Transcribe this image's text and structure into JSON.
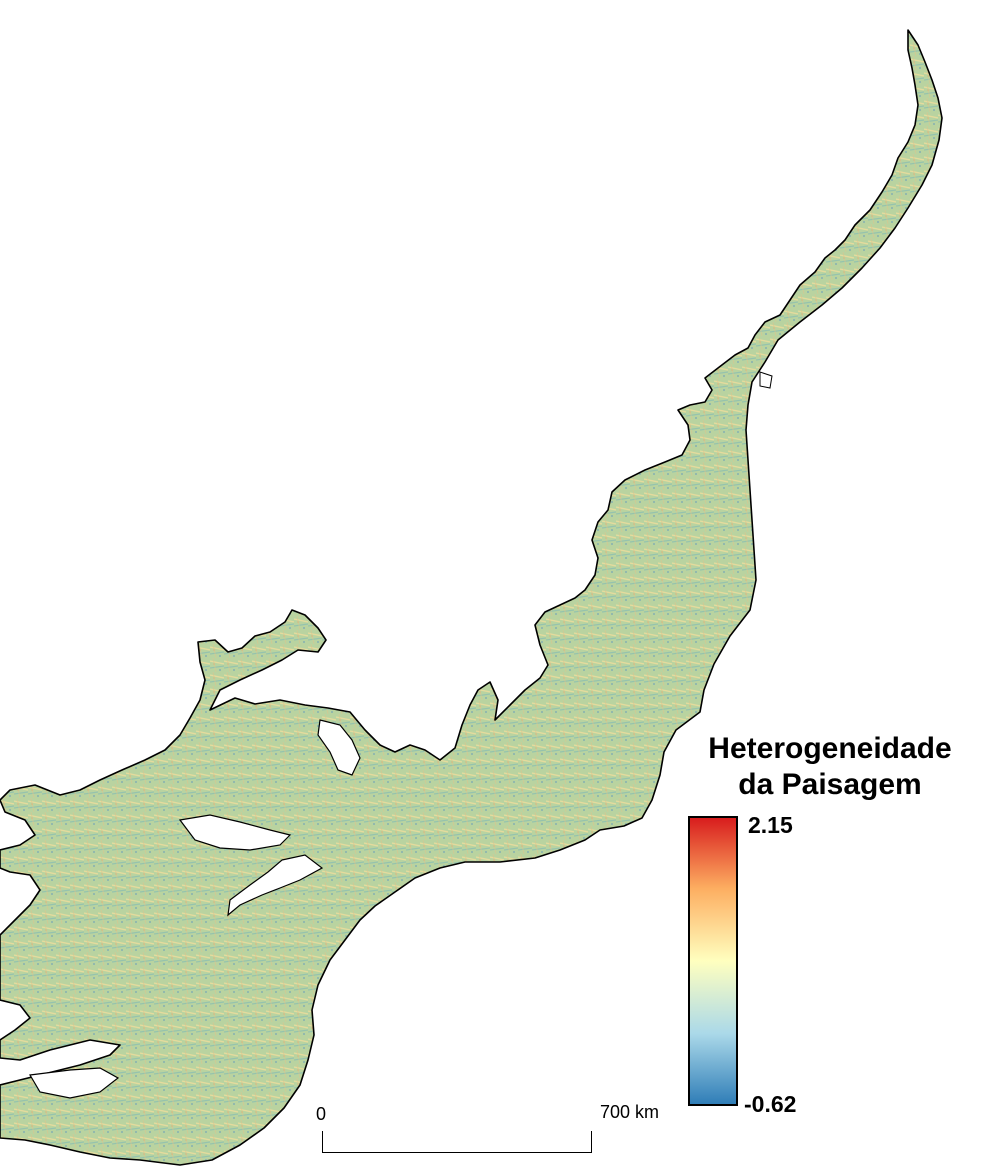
{
  "legend": {
    "title_line1": "Heterogeneidade",
    "title_line2": "da Paisagem",
    "max_label": "2.15",
    "min_label": "-0.62",
    "colors": [
      "#2c7bb6",
      "#abd9e9",
      "#ffffbf",
      "#fdae61",
      "#d7191c"
    ]
  },
  "scale_bar": {
    "start_label": "0",
    "end_label": "700 km"
  },
  "map": {
    "fill_base": "#b8d4a0",
    "outline_color": "#000000"
  }
}
